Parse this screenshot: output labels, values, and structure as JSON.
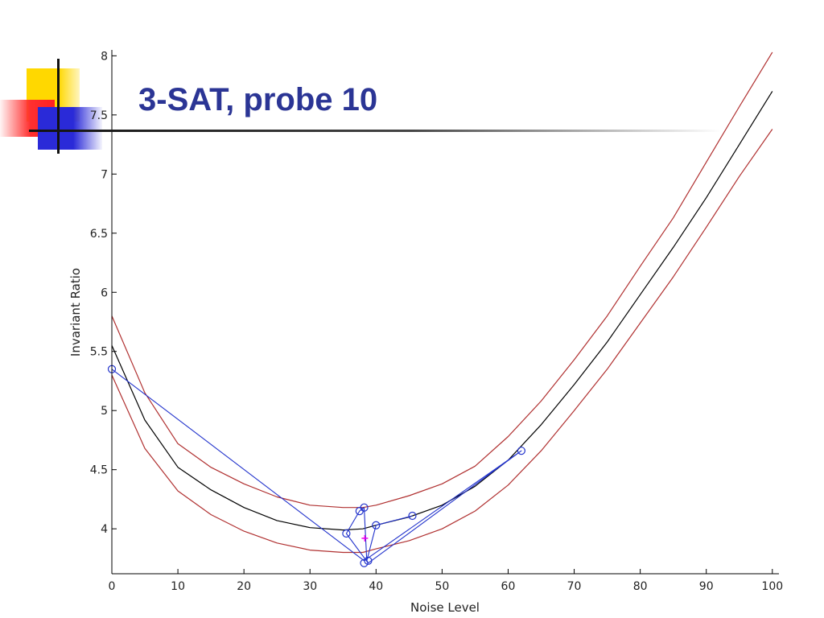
{
  "slide": {
    "title": "3-SAT, probe 10"
  },
  "colors": {
    "title": "#2b3595",
    "mean_line": "#000000",
    "bound_lines": "#b03030",
    "probe_path": "#2233cc",
    "probe_markers": "#2233cc",
    "probe_highlight": "#ee00ee"
  },
  "chart_data": {
    "type": "line",
    "title": "",
    "xlabel": "Noise Level",
    "ylabel": "Invariant Ratio",
    "xlim": [
      0,
      101
    ],
    "ylim": [
      3.62,
      8.05
    ],
    "x_ticks": [
      0,
      10,
      20,
      30,
      40,
      50,
      60,
      70,
      80,
      90,
      100
    ],
    "y_ticks": [
      4,
      4.5,
      5,
      5.5,
      6,
      6.5,
      7,
      7.5,
      8
    ],
    "y_tick_labels": [
      "4",
      "4.5",
      "5",
      "5.5",
      "6",
      "6.5",
      "7",
      "7.5",
      "8"
    ],
    "grid": false,
    "x": [
      0,
      5,
      10,
      15,
      20,
      25,
      30,
      35,
      38,
      40,
      45,
      50,
      55,
      60,
      65,
      70,
      75,
      80,
      85,
      90,
      95,
      100
    ],
    "series": [
      {
        "role": "mean",
        "values": [
          5.55,
          4.92,
          4.52,
          4.33,
          4.18,
          4.07,
          4.01,
          3.99,
          4.0,
          4.03,
          4.1,
          4.2,
          4.36,
          4.58,
          4.88,
          5.22,
          5.58,
          5.98,
          6.38,
          6.8,
          7.25,
          7.7
        ]
      },
      {
        "role": "upper",
        "values": [
          5.8,
          5.15,
          4.72,
          4.52,
          4.38,
          4.27,
          4.2,
          4.18,
          4.18,
          4.2,
          4.28,
          4.38,
          4.53,
          4.78,
          5.08,
          5.43,
          5.8,
          6.22,
          6.63,
          7.1,
          7.57,
          8.03
        ]
      },
      {
        "role": "lower",
        "values": [
          5.3,
          4.68,
          4.32,
          4.12,
          3.98,
          3.88,
          3.82,
          3.8,
          3.8,
          3.83,
          3.9,
          4.0,
          4.15,
          4.37,
          4.66,
          5.0,
          5.35,
          5.74,
          6.13,
          6.55,
          6.98,
          7.38
        ]
      }
    ],
    "probe_path": {
      "x": [
        0,
        38.2,
        62,
        38.8,
        35.5,
        37.5,
        38.2,
        38.6,
        40,
        45.5
      ],
      "y": [
        5.35,
        3.73,
        4.66,
        3.71,
        3.96,
        4.15,
        4.18,
        3.73,
        4.03,
        4.11
      ]
    },
    "probe_markers": {
      "x": [
        0,
        38.2,
        62,
        38.8,
        35.5,
        37.5,
        38.2,
        40,
        45.5
      ],
      "y": [
        5.35,
        3.71,
        4.66,
        3.73,
        3.96,
        4.15,
        4.18,
        4.03,
        4.11
      ]
    },
    "probe_highlight": {
      "x": 38.3,
      "y": 3.92
    }
  }
}
